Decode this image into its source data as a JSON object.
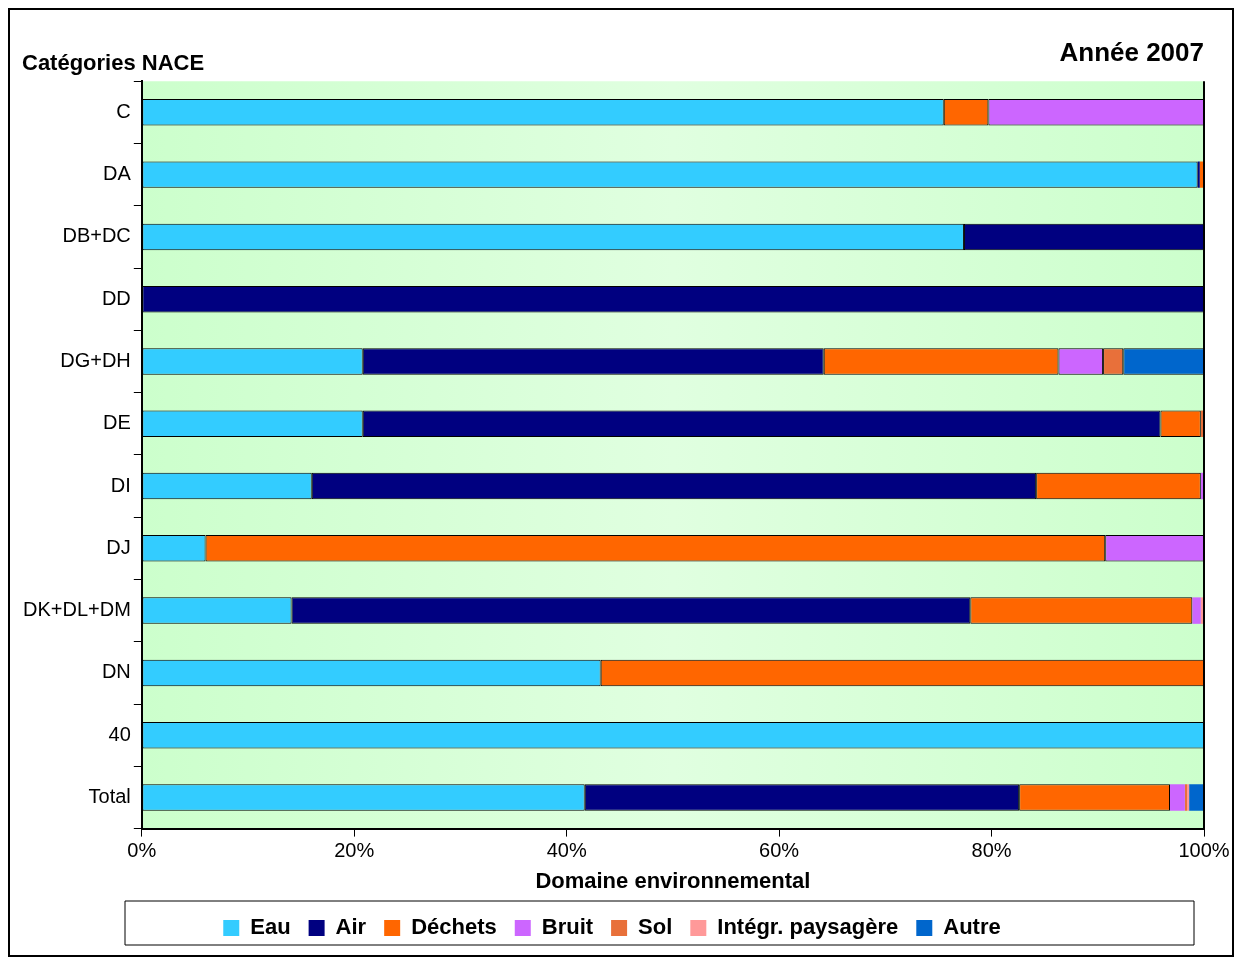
{
  "chart_data": {
    "type": "bar",
    "orientation": "horizontal",
    "stacked": true,
    "title": "Année 2007",
    "ylabel": "Catégories NACE",
    "xlabel": "Domaine environnemental",
    "categories": [
      "C",
      "DA",
      "DB+DC",
      "DD",
      "DG+DH",
      "DE",
      "DI",
      "DJ",
      "DK+DL+DM",
      "DN",
      "40",
      "Total"
    ],
    "series": [
      {
        "name": "Eau",
        "color": "#33ccff",
        "values": [
          75.5,
          99.4,
          77.4,
          null,
          20.8,
          20.8,
          16.0,
          6.0,
          14.1,
          43.2,
          100,
          41.7
        ]
      },
      {
        "name": "Air",
        "color": "#000080",
        "values": [
          null,
          0.2,
          22.6,
          100,
          43.4,
          75.1,
          68.2,
          null,
          63.9,
          null,
          null,
          40.9
        ]
      },
      {
        "name": "Déchets",
        "color": "#ff6600",
        "values": [
          4.2,
          0.4,
          null,
          null,
          22.1,
          3.8,
          15.5,
          84.7,
          20.9,
          56.8,
          null,
          14.2
        ]
      },
      {
        "name": "Bruit",
        "color": "#cc66ff",
        "values": [
          20.3,
          null,
          null,
          null,
          4.2,
          null,
          0.3,
          9.3,
          0.8,
          null,
          null,
          1.4
        ]
      },
      {
        "name": "Sol",
        "color": "#e8703a",
        "values": [
          null,
          null,
          null,
          null,
          1.9,
          0.3,
          null,
          null,
          null,
          null,
          null,
          0.2
        ]
      },
      {
        "name": "Intégr. paysagère",
        "color": "#ff9999",
        "values": [
          null,
          null,
          null,
          null,
          null,
          null,
          null,
          null,
          0.3,
          null,
          null,
          0.2
        ]
      },
      {
        "name": "Autre",
        "color": "#0066cc",
        "values": [
          null,
          null,
          null,
          null,
          7.6,
          null,
          null,
          null,
          null,
          null,
          null,
          1.4
        ]
      }
    ],
    "xlim": [
      0,
      100
    ],
    "xticks": [
      {
        "value": 0,
        "label": "0%"
      },
      {
        "value": 20,
        "label": "20%"
      },
      {
        "value": 40,
        "label": "40%"
      },
      {
        "value": 60,
        "label": "60%"
      },
      {
        "value": 80,
        "label": "80%"
      },
      {
        "value": 100,
        "label": "100%"
      }
    ],
    "legend": "bottom"
  }
}
